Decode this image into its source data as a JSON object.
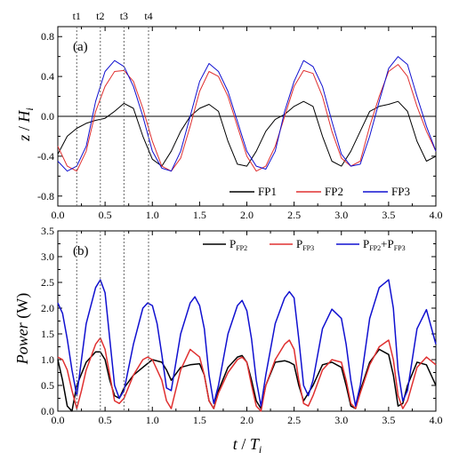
{
  "chart_data": [
    {
      "type": "line",
      "panel_label": "(a)",
      "ylabel_main": "z",
      "ylabel_sep": " / ",
      "ylabel_var": "H",
      "ylabel_sub": "i",
      "xlim": [
        0,
        4.0
      ],
      "ylim": [
        -0.9,
        0.9
      ],
      "x_ticks": [
        0.0,
        0.5,
        1.0,
        1.5,
        2.0,
        2.5,
        3.0,
        3.5,
        4.0
      ],
      "x_tick_labels": [
        "0.0",
        "0.5",
        "1.0",
        "1.5",
        "2.0",
        "2.5",
        "3.0",
        "3.5",
        "4.0"
      ],
      "y_ticks": [
        -0.8,
        -0.4,
        0.0,
        0.4,
        0.8
      ],
      "y_tick_labels": [
        "-0.8",
        "-0.4",
        "0.0",
        "0.4",
        "0.8"
      ],
      "time_markers": [
        {
          "label": "t1",
          "x": 0.2
        },
        {
          "label": "t2",
          "x": 0.45
        },
        {
          "label": "t3",
          "x": 0.7
        },
        {
          "label": "t4",
          "x": 0.96
        }
      ],
      "legend_position": "bottom-right",
      "series": [
        {
          "name": "FP1",
          "color": "#000000",
          "x": [
            0,
            0.1,
            0.2,
            0.3,
            0.4,
            0.5,
            0.6,
            0.7,
            0.8,
            0.9,
            1.0,
            1.1,
            1.2,
            1.3,
            1.4,
            1.5,
            1.6,
            1.7,
            1.8,
            1.9,
            2.0,
            2.1,
            2.2,
            2.3,
            2.4,
            2.5,
            2.6,
            2.7,
            2.8,
            2.9,
            3.0,
            3.1,
            3.2,
            3.3,
            3.4,
            3.5,
            3.6,
            3.7,
            3.8,
            3.9,
            4.0
          ],
          "y": [
            -0.38,
            -0.2,
            -0.12,
            -0.07,
            -0.04,
            -0.02,
            0.05,
            0.13,
            0.08,
            -0.2,
            -0.43,
            -0.5,
            -0.35,
            -0.15,
            0.0,
            0.08,
            0.12,
            0.05,
            -0.25,
            -0.48,
            -0.5,
            -0.35,
            -0.15,
            -0.03,
            0.02,
            0.1,
            0.15,
            0.1,
            -0.2,
            -0.45,
            -0.5,
            -0.35,
            -0.15,
            0.05,
            0.1,
            0.12,
            0.15,
            0.05,
            -0.25,
            -0.45,
            -0.4
          ]
        },
        {
          "name": "FP2",
          "color": "#e03030",
          "x": [
            0,
            0.1,
            0.2,
            0.3,
            0.4,
            0.5,
            0.6,
            0.7,
            0.8,
            0.9,
            1.0,
            1.1,
            1.2,
            1.3,
            1.4,
            1.5,
            1.6,
            1.7,
            1.8,
            1.9,
            2.0,
            2.1,
            2.2,
            2.3,
            2.4,
            2.5,
            2.6,
            2.7,
            2.8,
            2.9,
            3.0,
            3.1,
            3.2,
            3.3,
            3.4,
            3.5,
            3.6,
            3.7,
            3.8,
            3.9,
            4.0
          ],
          "y": [
            -0.3,
            -0.5,
            -0.55,
            -0.35,
            0.05,
            0.3,
            0.45,
            0.46,
            0.35,
            0.08,
            -0.25,
            -0.5,
            -0.55,
            -0.42,
            -0.1,
            0.25,
            0.45,
            0.4,
            0.2,
            -0.1,
            -0.4,
            -0.55,
            -0.5,
            -0.3,
            0.0,
            0.3,
            0.46,
            0.43,
            0.2,
            -0.15,
            -0.42,
            -0.5,
            -0.45,
            -0.1,
            0.2,
            0.45,
            0.52,
            0.4,
            0.1,
            -0.15,
            -0.35
          ]
        },
        {
          "name": "FP3",
          "color": "#1010d0",
          "x": [
            0,
            0.1,
            0.2,
            0.3,
            0.4,
            0.5,
            0.6,
            0.7,
            0.8,
            0.9,
            1.0,
            1.1,
            1.2,
            1.3,
            1.4,
            1.5,
            1.6,
            1.7,
            1.8,
            1.9,
            2.0,
            2.1,
            2.2,
            2.3,
            2.4,
            2.5,
            2.6,
            2.7,
            2.8,
            2.9,
            3.0,
            3.1,
            3.2,
            3.3,
            3.4,
            3.5,
            3.6,
            3.7,
            3.8,
            3.9,
            4.0
          ],
          "y": [
            -0.45,
            -0.55,
            -0.5,
            -0.3,
            0.15,
            0.45,
            0.56,
            0.5,
            0.3,
            0.0,
            -0.35,
            -0.52,
            -0.55,
            -0.35,
            0.0,
            0.35,
            0.53,
            0.45,
            0.25,
            -0.05,
            -0.35,
            -0.5,
            -0.53,
            -0.35,
            0.05,
            0.35,
            0.56,
            0.5,
            0.3,
            -0.05,
            -0.38,
            -0.5,
            -0.48,
            -0.2,
            0.15,
            0.48,
            0.6,
            0.52,
            0.2,
            -0.1,
            -0.35
          ]
        }
      ]
    },
    {
      "type": "line",
      "panel_label": "(b)",
      "ylabel_main": "Power",
      "ylabel_unit": " (W)",
      "xlabel_t": "t",
      "xlabel_sep": " / ",
      "xlabel_T": "T",
      "xlabel_sub": "i",
      "xlim": [
        0,
        4.0
      ],
      "ylim": [
        0,
        3.5
      ],
      "x_ticks": [
        0.0,
        0.5,
        1.0,
        1.5,
        2.0,
        2.5,
        3.0,
        3.5,
        4.0
      ],
      "x_tick_labels": [
        "0.0",
        "0.5",
        "1.0",
        "1.5",
        "2.0",
        "2.5",
        "3.0",
        "3.5",
        "4.0"
      ],
      "y_ticks": [
        0.0,
        0.5,
        1.0,
        1.5,
        2.0,
        2.5,
        3.0,
        3.5
      ],
      "y_tick_labels": [
        "0.0",
        "0.5",
        "1.0",
        "1.5",
        "2.0",
        "2.5",
        "3.0",
        "3.5"
      ],
      "legend_position": "top",
      "legend": [
        {
          "main": "P",
          "sub": "FP2",
          "color": "#000000"
        },
        {
          "main": "P",
          "sub": "FP3",
          "color": "#e03030"
        },
        {
          "main": "P",
          "sub": "FP2",
          "join": "+",
          "main2": "P",
          "sub2": "FP3",
          "color": "#1010d0"
        }
      ],
      "series": [
        {
          "name": "PFP2",
          "color": "#000000",
          "x": [
            0,
            0.05,
            0.1,
            0.15,
            0.2,
            0.3,
            0.4,
            0.45,
            0.5,
            0.55,
            0.6,
            0.65,
            0.7,
            0.8,
            0.9,
            1.0,
            1.1,
            1.15,
            1.2,
            1.3,
            1.4,
            1.5,
            1.55,
            1.6,
            1.65,
            1.7,
            1.8,
            1.9,
            1.95,
            2.0,
            2.05,
            2.1,
            2.15,
            2.2,
            2.3,
            2.4,
            2.45,
            2.5,
            2.55,
            2.6,
            2.65,
            2.7,
            2.8,
            2.9,
            3.0,
            3.05,
            3.1,
            3.15,
            3.2,
            3.3,
            3.4,
            3.5,
            3.55,
            3.6,
            3.65,
            3.7,
            3.8,
            3.9,
            4.0
          ],
          "y": [
            1.0,
            0.6,
            0.1,
            0.0,
            0.5,
            0.95,
            1.15,
            1.15,
            1.0,
            0.6,
            0.3,
            0.25,
            0.45,
            0.7,
            0.85,
            1.0,
            0.95,
            0.8,
            0.6,
            0.85,
            0.9,
            0.92,
            0.7,
            0.2,
            0.05,
            0.4,
            0.85,
            1.05,
            1.08,
            0.95,
            0.6,
            0.2,
            0.05,
            0.5,
            0.95,
            0.98,
            0.95,
            0.9,
            0.5,
            0.2,
            0.35,
            0.5,
            0.9,
            0.95,
            0.85,
            0.5,
            0.1,
            0.05,
            0.4,
            0.95,
            1.2,
            1.1,
            0.7,
            0.1,
            0.15,
            0.5,
            0.95,
            0.9,
            0.5
          ]
        },
        {
          "name": "PFP3",
          "color": "#e03030",
          "x": [
            0,
            0.05,
            0.1,
            0.15,
            0.2,
            0.25,
            0.3,
            0.4,
            0.45,
            0.5,
            0.55,
            0.6,
            0.65,
            0.7,
            0.8,
            0.9,
            0.95,
            1.0,
            1.1,
            1.15,
            1.2,
            1.3,
            1.4,
            1.5,
            1.55,
            1.6,
            1.65,
            1.7,
            1.8,
            1.9,
            1.95,
            2.0,
            2.05,
            2.1,
            2.15,
            2.2,
            2.3,
            2.4,
            2.45,
            2.5,
            2.55,
            2.6,
            2.65,
            2.7,
            2.8,
            2.9,
            3.0,
            3.05,
            3.1,
            3.15,
            3.2,
            3.3,
            3.4,
            3.5,
            3.55,
            3.6,
            3.65,
            3.7,
            3.8,
            3.9,
            4.0
          ],
          "y": [
            1.05,
            1.0,
            0.8,
            0.4,
            0.05,
            0.4,
            0.8,
            1.3,
            1.42,
            1.2,
            0.7,
            0.2,
            0.15,
            0.25,
            0.7,
            1.0,
            1.05,
            1.0,
            0.6,
            0.2,
            0.05,
            0.8,
            1.2,
            1.05,
            0.7,
            0.2,
            0.05,
            0.35,
            0.75,
            1.0,
            1.05,
            0.95,
            0.5,
            0.1,
            0.0,
            0.5,
            1.0,
            1.3,
            1.38,
            1.2,
            0.6,
            0.15,
            0.1,
            0.3,
            0.8,
            1.0,
            0.95,
            0.6,
            0.15,
            0.05,
            0.35,
            0.9,
            1.25,
            1.38,
            1.0,
            0.3,
            0.05,
            0.2,
            0.85,
            1.05,
            0.9
          ]
        },
        {
          "name": "PFP2+PFP3",
          "color": "#1010d0",
          "x": [
            0,
            0.05,
            0.1,
            0.15,
            0.2,
            0.25,
            0.3,
            0.4,
            0.45,
            0.5,
            0.55,
            0.6,
            0.65,
            0.7,
            0.8,
            0.9,
            0.95,
            1.0,
            1.05,
            1.1,
            1.15,
            1.2,
            1.3,
            1.4,
            1.45,
            1.5,
            1.55,
            1.6,
            1.65,
            1.7,
            1.8,
            1.9,
            1.95,
            2.0,
            2.05,
            2.1,
            2.15,
            2.2,
            2.3,
            2.4,
            2.45,
            2.5,
            2.55,
            2.6,
            2.65,
            2.7,
            2.8,
            2.9,
            3.0,
            3.05,
            3.1,
            3.15,
            3.2,
            3.3,
            3.4,
            3.5,
            3.55,
            3.6,
            3.65,
            3.7,
            3.8,
            3.9,
            4.0
          ],
          "y": [
            2.1,
            1.9,
            1.4,
            0.8,
            0.3,
            1.0,
            1.7,
            2.4,
            2.55,
            2.3,
            1.4,
            0.5,
            0.25,
            0.4,
            1.3,
            2.0,
            2.1,
            2.05,
            1.7,
            1.1,
            0.45,
            0.4,
            1.5,
            2.1,
            2.22,
            2.05,
            1.6,
            0.7,
            0.15,
            0.5,
            1.5,
            2.05,
            2.15,
            1.95,
            1.4,
            0.6,
            0.1,
            0.7,
            1.7,
            2.2,
            2.32,
            2.2,
            1.4,
            0.5,
            0.3,
            0.6,
            1.6,
            1.98,
            1.8,
            1.3,
            0.6,
            0.1,
            0.5,
            1.8,
            2.4,
            2.55,
            2.0,
            0.8,
            0.2,
            0.4,
            1.6,
            1.97,
            1.3
          ]
        }
      ]
    }
  ]
}
